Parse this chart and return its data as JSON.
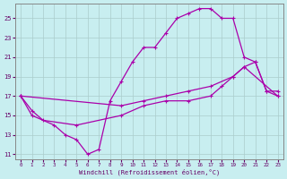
{
  "xlabel": "Windchill (Refroidissement éolien,°C)",
  "background_color": "#c8eef0",
  "grid_color": "#aacccc",
  "line_color": "#aa00aa",
  "spine_color": "#888888",
  "tick_color": "#660066",
  "xlim": [
    -0.5,
    23.5
  ],
  "ylim": [
    10.5,
    26.5
  ],
  "yticks": [
    11,
    13,
    15,
    17,
    19,
    21,
    23,
    25
  ],
  "xticks": [
    0,
    1,
    2,
    3,
    4,
    5,
    6,
    7,
    8,
    9,
    10,
    11,
    12,
    13,
    14,
    15,
    16,
    17,
    18,
    19,
    20,
    21,
    22,
    23
  ],
  "line1_x": [
    0,
    1,
    3,
    4,
    5,
    6,
    7,
    8,
    9,
    10,
    11,
    12,
    13,
    14,
    15,
    16,
    17,
    18,
    19,
    20,
    21,
    22,
    23
  ],
  "line1_y": [
    17,
    15,
    14,
    13,
    12.5,
    11,
    11.5,
    16.5,
    18.5,
    20.5,
    22,
    22,
    23.5,
    25,
    25.5,
    26,
    26,
    25,
    25,
    21,
    20.5,
    17.5,
    17
  ],
  "line2_x": [
    0,
    1,
    2,
    5,
    9,
    11,
    13,
    15,
    17,
    18,
    19,
    20,
    21,
    22,
    23
  ],
  "line2_y": [
    17,
    15.5,
    14.5,
    14,
    15,
    16,
    16.5,
    16.5,
    17,
    18,
    19,
    20,
    20.5,
    17.5,
    17.5
  ],
  "line3_x": [
    0,
    9,
    11,
    13,
    15,
    17,
    19,
    20,
    23
  ],
  "line3_y": [
    17,
    16,
    16.5,
    17,
    17.5,
    18,
    19,
    20,
    17
  ]
}
